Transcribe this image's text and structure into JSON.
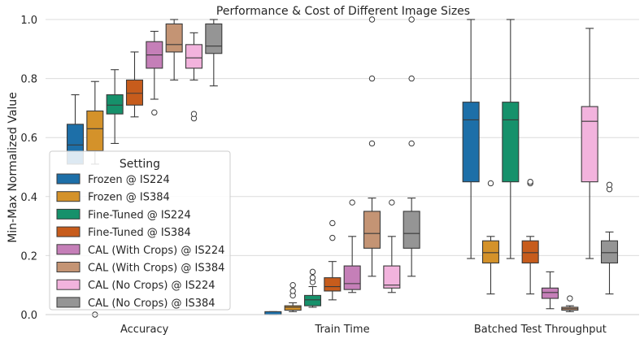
{
  "chart_data": {
    "type": "box",
    "title": "Performance & Cost of Different Image Sizes",
    "xlabel": "",
    "ylabel": "Min-Max Normalized Value",
    "ylim": [
      0,
      1
    ],
    "yticks": [
      "0.0",
      "0.2",
      "0.4",
      "0.6",
      "0.8",
      "1.0"
    ],
    "grid": "horizontal",
    "categories": [
      "Accuracy",
      "Train Time",
      "Batched Test Throughput"
    ],
    "legend": {
      "title": "Setting",
      "placement": "lower-left"
    },
    "series": [
      {
        "name": "Frozen @ IS224",
        "color": "#1d6fa8",
        "boxes": [
          {
            "min": 0.51,
            "q1": 0.51,
            "median": 0.575,
            "q3": 0.645,
            "max": 0.745,
            "fliers": []
          },
          {
            "min": 0.0,
            "q1": 0.0,
            "median": 0.0,
            "q3": 0.01,
            "max": 0.01,
            "fliers": []
          },
          {
            "min": 0.19,
            "q1": 0.45,
            "median": 0.66,
            "q3": 0.72,
            "max": 1.0,
            "fliers": []
          }
        ]
      },
      {
        "name": "Frozen @ IS384",
        "color": "#d4922a",
        "boxes": [
          {
            "min": 0.51,
            "q1": 0.555,
            "median": 0.63,
            "q3": 0.69,
            "max": 0.79,
            "fliers": [
              0.0
            ]
          },
          {
            "min": 0.01,
            "q1": 0.015,
            "median": 0.025,
            "q3": 0.03,
            "max": 0.04,
            "fliers": [
              0.065,
              0.08,
              0.1
            ]
          },
          {
            "min": 0.07,
            "q1": 0.175,
            "median": 0.21,
            "q3": 0.25,
            "max": 0.265,
            "fliers": [
              0.445
            ]
          }
        ]
      },
      {
        "name": "Fine-Tuned @ IS224",
        "color": "#16916b",
        "boxes": [
          {
            "min": 0.58,
            "q1": 0.68,
            "median": 0.71,
            "q3": 0.745,
            "max": 0.83,
            "fliers": []
          },
          {
            "min": 0.025,
            "q1": 0.03,
            "median": 0.05,
            "q3": 0.065,
            "max": 0.095,
            "fliers": [
              0.11,
              0.125,
              0.145
            ]
          },
          {
            "min": 0.19,
            "q1": 0.45,
            "median": 0.66,
            "q3": 0.72,
            "max": 1.0,
            "fliers": []
          }
        ]
      },
      {
        "name": "Fine-Tuned @ IS384",
        "color": "#c75c1c",
        "boxes": [
          {
            "min": 0.67,
            "q1": 0.71,
            "median": 0.75,
            "q3": 0.795,
            "max": 0.89,
            "fliers": []
          },
          {
            "min": 0.05,
            "q1": 0.08,
            "median": 0.095,
            "q3": 0.125,
            "max": 0.18,
            "fliers": [
              0.26,
              0.31
            ]
          },
          {
            "min": 0.07,
            "q1": 0.175,
            "median": 0.21,
            "q3": 0.25,
            "max": 0.265,
            "fliers": [
              0.445,
              0.45
            ]
          }
        ]
      },
      {
        "name": "CAL (With Crops) @ IS224",
        "color": "#c57fb8",
        "boxes": [
          {
            "min": 0.73,
            "q1": 0.835,
            "median": 0.88,
            "q3": 0.925,
            "max": 0.96,
            "fliers": [
              0.685
            ]
          },
          {
            "min": 0.075,
            "q1": 0.085,
            "median": 0.105,
            "q3": 0.165,
            "max": 0.265,
            "fliers": [
              0.38
            ]
          },
          {
            "min": 0.02,
            "q1": 0.055,
            "median": 0.075,
            "q3": 0.09,
            "max": 0.145,
            "fliers": []
          }
        ]
      },
      {
        "name": "CAL (With Crops) @ IS384",
        "color": "#c49474",
        "boxes": [
          {
            "min": 0.795,
            "q1": 0.89,
            "median": 0.915,
            "q3": 0.985,
            "max": 1.0,
            "fliers": []
          },
          {
            "min": 0.13,
            "q1": 0.225,
            "median": 0.275,
            "q3": 0.35,
            "max": 0.395,
            "fliers": [
              0.58,
              0.8,
              1.0
            ]
          },
          {
            "min": 0.01,
            "q1": 0.015,
            "median": 0.02,
            "q3": 0.025,
            "max": 0.03,
            "fliers": [
              0.055
            ]
          }
        ]
      },
      {
        "name": "CAL (No Crops) @ IS224",
        "color": "#f2b3dd",
        "boxes": [
          {
            "min": 0.795,
            "q1": 0.835,
            "median": 0.87,
            "q3": 0.915,
            "max": 0.955,
            "fliers": [
              0.665,
              0.68
            ]
          },
          {
            "min": 0.075,
            "q1": 0.09,
            "median": 0.1,
            "q3": 0.165,
            "max": 0.265,
            "fliers": [
              0.38
            ]
          },
          {
            "min": 0.19,
            "q1": 0.45,
            "median": 0.655,
            "q3": 0.705,
            "max": 0.97,
            "fliers": []
          }
        ]
      },
      {
        "name": "CAL (No Crops) @ IS384",
        "color": "#959595",
        "boxes": [
          {
            "min": 0.775,
            "q1": 0.885,
            "median": 0.91,
            "q3": 0.985,
            "max": 1.0,
            "fliers": []
          },
          {
            "min": 0.13,
            "q1": 0.225,
            "median": 0.275,
            "q3": 0.35,
            "max": 0.395,
            "fliers": [
              0.58,
              0.8,
              1.0
            ]
          },
          {
            "min": 0.07,
            "q1": 0.175,
            "median": 0.21,
            "q3": 0.25,
            "max": 0.28,
            "fliers": [
              0.425,
              0.44
            ]
          }
        ]
      }
    ]
  }
}
